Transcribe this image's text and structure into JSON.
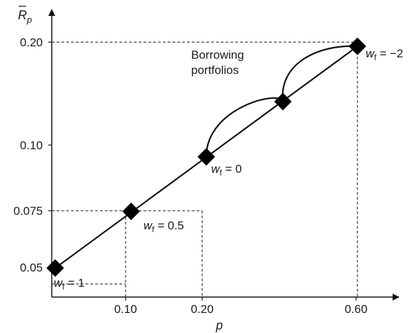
{
  "chart_data": {
    "type": "line",
    "xlabel": "p",
    "ylabel_base": "R",
    "ylabel_sub": "p",
    "x_tick_labels": [
      "0.10",
      "0.20",
      "0.60"
    ],
    "y_tick_labels": [
      "0.05",
      "0.075",
      "0.10",
      "0.20"
    ],
    "series": [
      {
        "points": [
          {
            "x": "0",
            "y": "0.05",
            "label_sym": "w",
            "label_sub": "f",
            "label_val": " = 1"
          },
          {
            "x": "0.10",
            "y": "0.075",
            "label_sym": "w",
            "label_sub": "f",
            "label_val": " = 0.5"
          },
          {
            "x": "0.20",
            "y": "0.10",
            "label_sym": "w",
            "label_sub": "f",
            "label_val": " = 0"
          },
          {
            "x": "",
            "y": "",
            "label_sym": "",
            "label_sub": "",
            "label_val": ""
          },
          {
            "x": "0.60",
            "y": "0.20",
            "label_sym": "w",
            "label_sub": "f",
            "label_val": " = −2"
          }
        ]
      }
    ],
    "annotations": [
      "Borrowing",
      "portfolios"
    ],
    "colors": {
      "line": "#111111",
      "marker": "#000000"
    }
  }
}
